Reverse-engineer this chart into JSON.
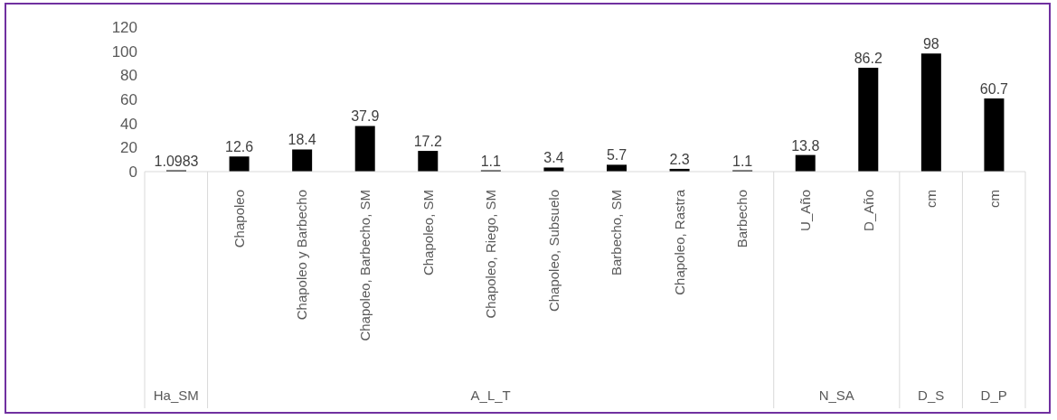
{
  "chart_data": {
    "type": "bar",
    "categories": [
      null,
      "Chapoleo",
      "Chapoleo y Barbecho",
      "Chapoleo, Barbecho, SM",
      "Chapoleo, SM",
      "Chapoleo, Riego, SM",
      "Chapoleo, Subsuelo",
      "Barbecho, SM",
      "Chapoleo, Rastra",
      "Barbecho",
      "U_Año",
      "D_Año",
      "cm",
      "cm"
    ],
    "values": [
      1.0983,
      12.6,
      18.4,
      37.9,
      17.2,
      1.1,
      3.4,
      5.7,
      2.3,
      1.1,
      13.8,
      86.2,
      98,
      60.7
    ],
    "color": "#000000",
    "ylim": [
      0,
      120
    ],
    "yticks": [
      0,
      20,
      40,
      60,
      80,
      100,
      120
    ],
    "grid": false,
    "legend": false,
    "data_labels": true,
    "annotations": [
      "Ha_SM",
      "A_L_T",
      "N_SA",
      "D_S",
      "D_P"
    ]
  }
}
